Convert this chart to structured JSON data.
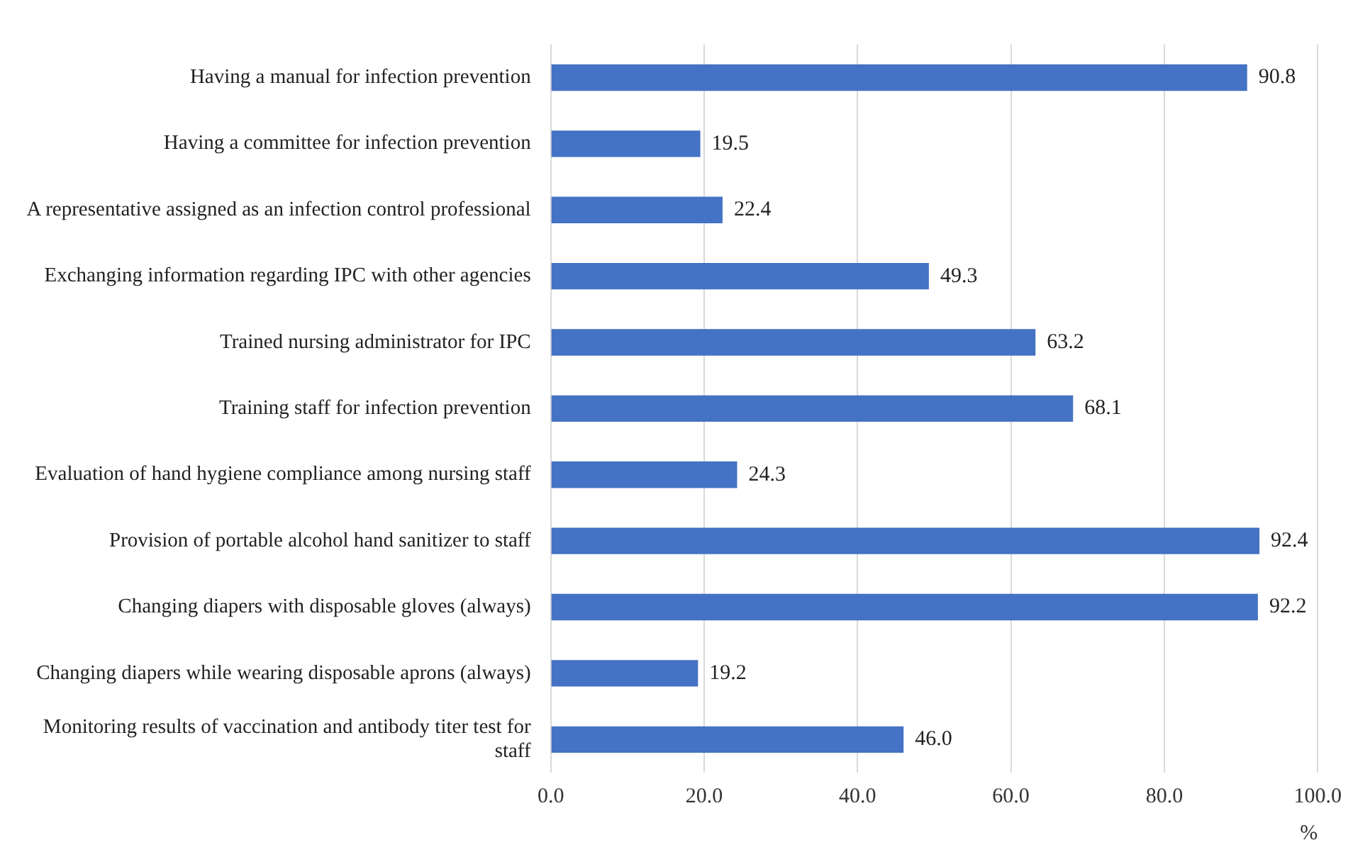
{
  "chart_data": {
    "type": "bar",
    "orientation": "horizontal",
    "categories": [
      "Having a manual for infection prevention",
      "Having a committee for infection prevention",
      "A representative assigned as an infection control professional",
      "Exchanging information regarding IPC with other agencies",
      "Trained nursing administrator for IPC",
      "Training staff for infection prevention",
      "Evaluation of hand hygiene compliance among nursing staff",
      "Provision of portable alcohol hand sanitizer to staff",
      "Changing diapers with disposable gloves (always)",
      "Changing diapers while wearing disposable aprons (always)",
      "Monitoring results of vaccination and antibody titer test for staff"
    ],
    "values": [
      90.8,
      19.5,
      22.4,
      49.3,
      63.2,
      68.1,
      24.3,
      92.4,
      92.2,
      19.2,
      46.0
    ],
    "value_labels": [
      "90.8",
      "19.5",
      "22.4",
      "49.3",
      "63.2",
      "68.1",
      "24.3",
      "92.4",
      "92.2",
      "19.2",
      "46.0"
    ],
    "color": "#4472c4",
    "xlabel": "%",
    "xlim": [
      0,
      100
    ],
    "xticks": [
      {
        "value": 0,
        "label": "0.0"
      },
      {
        "value": 20,
        "label": "20.0"
      },
      {
        "value": 40,
        "label": "40.0"
      },
      {
        "value": 60,
        "label": "60.0"
      },
      {
        "value": 80,
        "label": "80.0"
      },
      {
        "value": 100,
        "label": "100.0"
      }
    ],
    "grid": "x",
    "legend": false
  }
}
